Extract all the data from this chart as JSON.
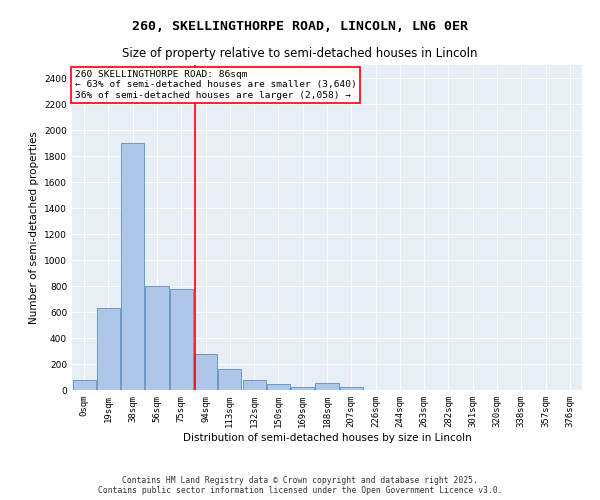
{
  "title_line1": "260, SKELLINGTHORPE ROAD, LINCOLN, LN6 0ER",
  "title_line2": "Size of property relative to semi-detached houses in Lincoln",
  "xlabel": "Distribution of semi-detached houses by size in Lincoln",
  "ylabel": "Number of semi-detached properties",
  "footnote_line1": "Contains HM Land Registry data © Crown copyright and database right 2025.",
  "footnote_line2": "Contains public sector information licensed under the Open Government Licence v3.0.",
  "annotation_title": "260 SKELLINGTHORPE ROAD: 86sqm",
  "annotation_line1": "← 63% of semi-detached houses are smaller (3,640)",
  "annotation_line2": "36% of semi-detached houses are larger (2,058) →",
  "bar_labels": [
    "0sqm",
    "19sqm",
    "38sqm",
    "56sqm",
    "75sqm",
    "94sqm",
    "113sqm",
    "132sqm",
    "150sqm",
    "169sqm",
    "188sqm",
    "207sqm",
    "226sqm",
    "244sqm",
    "263sqm",
    "282sqm",
    "301sqm",
    "320sqm",
    "338sqm",
    "357sqm",
    "376sqm"
  ],
  "bar_values": [
    75,
    630,
    1900,
    800,
    780,
    280,
    160,
    75,
    50,
    25,
    55,
    25,
    0,
    0,
    0,
    0,
    0,
    0,
    0,
    0,
    0
  ],
  "bar_color": "#aec6e8",
  "bar_edge_color": "#5a8fc0",
  "background_color": "#e8eef5",
  "grid_color": "#ffffff",
  "vline_color": "red",
  "vline_pos": 4.55,
  "ylim_max": 2500,
  "yticks": [
    0,
    200,
    400,
    600,
    800,
    1000,
    1200,
    1400,
    1600,
    1800,
    2000,
    2200,
    2400
  ],
  "annotation_box_facecolor": "white",
  "annotation_box_edgecolor": "red",
  "title_fontsize": 9.5,
  "subtitle_fontsize": 8.5,
  "axis_label_fontsize": 7.5,
  "tick_fontsize": 6.5,
  "annotation_fontsize": 6.8,
  "footnote_fontsize": 5.8
}
